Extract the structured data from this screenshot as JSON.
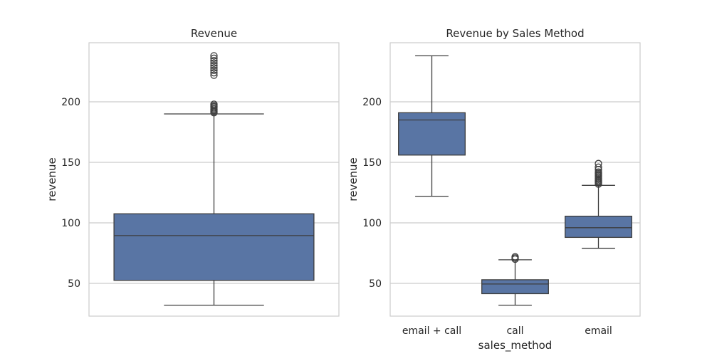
{
  "colors": {
    "box_fill": "#5975a4",
    "line": "#3d3d3d",
    "grid": "#cccccc",
    "frame": "#cccccc",
    "background": "#ffffff"
  },
  "chart_data": [
    {
      "type": "box",
      "title": "Revenue",
      "xlabel": "",
      "ylabel": "revenue",
      "ylim": [
        25,
        240
      ],
      "yticks": [
        50,
        100,
        150,
        200
      ],
      "grid": "horizontal",
      "categories": [
        ""
      ],
      "boxes": [
        {
          "category": "",
          "min": 32,
          "q1": 52.5,
          "median": 89.5,
          "q3": 107.5,
          "max": 190,
          "outliers": [
            191,
            192,
            193,
            194,
            195,
            196,
            197,
            198,
            222,
            224,
            226,
            228,
            230,
            232,
            234,
            236,
            238
          ]
        }
      ]
    },
    {
      "type": "box",
      "title": "Revenue by Sales Method",
      "xlabel": "sales_method",
      "ylabel": "revenue",
      "ylim": [
        25,
        240
      ],
      "yticks": [
        50,
        100,
        150,
        200
      ],
      "grid": "horizontal",
      "categories": [
        "email + call",
        "call",
        "email"
      ],
      "boxes": [
        {
          "category": "email + call",
          "min": 122,
          "q1": 156,
          "median": 185,
          "q3": 191,
          "max": 238,
          "outliers": []
        },
        {
          "category": "call",
          "min": 32,
          "q1": 41.5,
          "median": 49.5,
          "q3": 53,
          "max": 69.5,
          "outliers": [
            70,
            71,
            72
          ]
        },
        {
          "category": "email",
          "min": 79,
          "q1": 88,
          "median": 96,
          "q3": 105.5,
          "max": 131,
          "outliers": [
            132,
            133,
            134,
            135,
            136,
            137,
            138,
            139,
            140,
            141,
            142,
            144,
            146,
            149
          ]
        }
      ]
    }
  ]
}
